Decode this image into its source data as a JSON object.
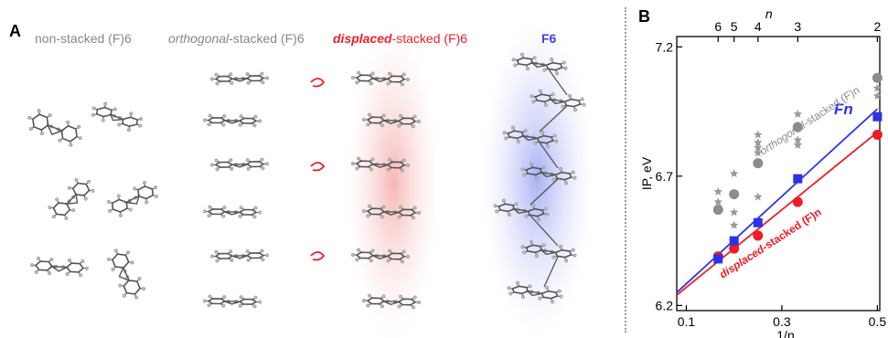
{
  "panel_a": {
    "letter": "A",
    "label_nonstacked": "non-stacked (F)6",
    "label_orthogonal_prefix": "orthogonal",
    "label_orthogonal_suffix": "-stacked (F)6",
    "label_displaced_prefix": "displaced",
    "label_displaced_suffix": "-stacked (F)6",
    "label_f6": "F6",
    "colors": {
      "gray": "#888888",
      "red": "#ee1c24",
      "blue": "#2b32e8",
      "molecule": "#555555"
    }
  },
  "chart_data": {
    "letter": "B",
    "type": "scatter",
    "xlabel": "1/n",
    "ylabel": "IP, eV",
    "top_axis_label": "n",
    "xlim": [
      0.08,
      0.505
    ],
    "ylim": [
      6.18,
      7.24
    ],
    "x_ticks": [
      0.1,
      0.3,
      0.5
    ],
    "x_tick_labels": [
      "0.1",
      "0.3",
      "0.5"
    ],
    "y_ticks": [
      6.2,
      6.7,
      7.2
    ],
    "y_tick_labels": [
      "6.2",
      "6.7",
      "7.2"
    ],
    "top_ticks": [
      6,
      5,
      4,
      3,
      2
    ],
    "top_tick_labels": [
      "6",
      "5",
      "4",
      "3",
      "2"
    ],
    "series": [
      {
        "name": "Fn",
        "color": "#2b32e8",
        "marker": "square",
        "x": [
          0.1667,
          0.2,
          0.25,
          0.3333,
          0.5
        ],
        "y": [
          6.38,
          6.45,
          6.52,
          6.69,
          6.93
        ],
        "fit": {
          "x": [
            0.08,
            0.5
          ],
          "y": [
            6.25,
            6.96
          ]
        }
      },
      {
        "name": "displaced-stacked (F)n",
        "color": "#ee1c24",
        "marker": "circle",
        "x": [
          0.1667,
          0.2,
          0.25,
          0.3333,
          0.5
        ],
        "y": [
          6.39,
          6.42,
          6.47,
          6.6,
          6.86
        ],
        "fit": {
          "x": [
            0.08,
            0.5
          ],
          "y": [
            6.24,
            6.87
          ]
        }
      },
      {
        "name": "orthogonal-stacked (F)n",
        "color": "#8c8c8c",
        "marker": "circle",
        "x": [
          0.1667,
          0.2,
          0.25,
          0.3333,
          0.5
        ],
        "y": [
          6.57,
          6.63,
          6.75,
          6.89,
          7.08
        ]
      },
      {
        "name": "",
        "color": "#9a9a9a",
        "marker": "star",
        "x": [
          0.1667,
          0.1667,
          0.1667,
          0.2,
          0.2,
          0.2,
          0.25,
          0.25,
          0.25,
          0.25,
          0.25,
          0.3333,
          0.3333,
          0.3333,
          0.5,
          0.5
        ],
        "y": [
          6.64,
          6.6,
          6.57,
          6.71,
          6.56,
          6.51,
          6.86,
          6.83,
          6.81,
          6.79,
          6.62,
          6.94,
          6.84,
          6.82,
          7.04,
          7.01
        ]
      }
    ],
    "annotations": {
      "fn": "Fn",
      "orthogonal_prefix": "orthogonal",
      "orthogonal_suffix": "-stacked (F)n",
      "displaced_prefix": "displaced",
      "displaced_suffix": "-stacked (F)n"
    },
    "grid": false,
    "legend": "none"
  }
}
